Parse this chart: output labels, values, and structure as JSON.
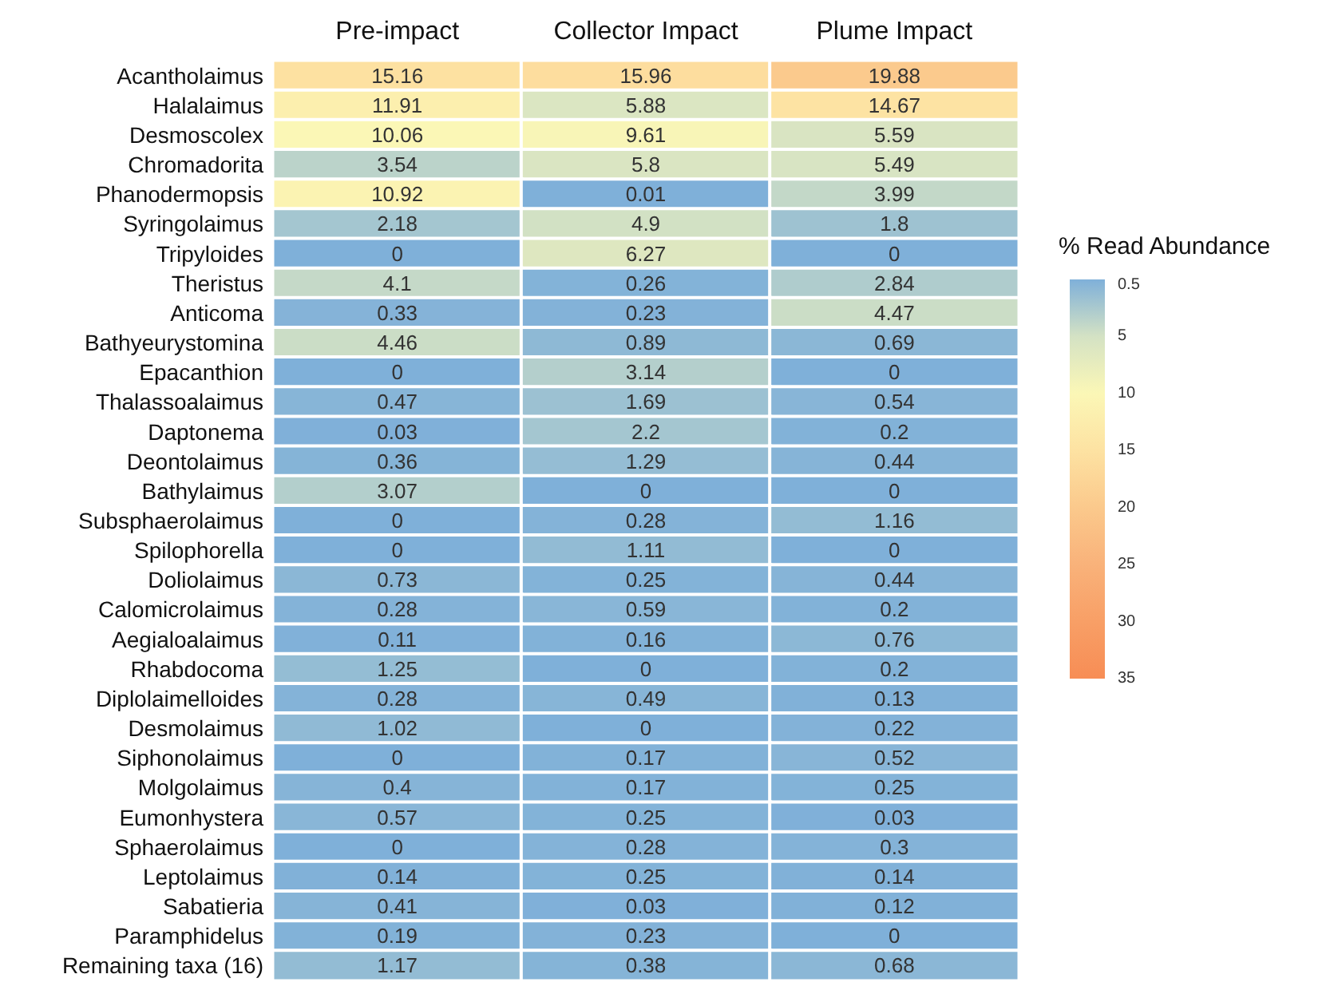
{
  "chart_data": {
    "type": "heatmap",
    "categories": [
      "Pre-impact",
      "Collector Impact",
      "Plume Impact"
    ],
    "y_categories": [
      "Acantholaimus",
      "Halalaimus",
      "Desmoscolex",
      "Chromadorita",
      "Phanodermopsis",
      "Syringolaimus",
      "Tripyloides",
      "Theristus",
      "Anticoma",
      "Bathyeurystomina",
      "Epacanthion",
      "Thalassoalaimus",
      "Daptonema",
      "Deontolaimus",
      "Bathylaimus",
      "Subsphaerolaimus",
      "Spilophorella",
      "Doliolaimus",
      "Calomicrolaimus",
      "Aegialoalaimus",
      "Rhabdocoma",
      "Diplolaimelloides",
      "Desmolaimus",
      "Siphonolaimus",
      "Molgolaimus",
      "Eumonhystera",
      "Sphaerolaimus",
      "Leptolaimus",
      "Sabatieria",
      "Paramphidelus",
      "Remaining taxa (16)"
    ],
    "cells": [
      [
        15.16,
        15.96,
        19.88
      ],
      [
        11.91,
        5.88,
        14.67
      ],
      [
        10.06,
        9.61,
        5.59
      ],
      [
        3.54,
        5.8,
        5.49
      ],
      [
        10.92,
        0.01,
        3.99
      ],
      [
        2.18,
        4.9,
        1.8
      ],
      [
        0,
        6.27,
        0
      ],
      [
        4.1,
        0.26,
        2.84
      ],
      [
        0.33,
        0.23,
        4.47
      ],
      [
        4.46,
        0.89,
        0.69
      ],
      [
        0,
        3.14,
        0
      ],
      [
        0.47,
        1.69,
        0.54
      ],
      [
        0.03,
        2.2,
        0.2
      ],
      [
        0.36,
        1.29,
        0.44
      ],
      [
        3.07,
        0,
        0
      ],
      [
        0,
        0.28,
        1.16
      ],
      [
        0,
        1.11,
        0
      ],
      [
        0.73,
        0.25,
        0.44
      ],
      [
        0.28,
        0.59,
        0.2
      ],
      [
        0.11,
        0.16,
        0.76
      ],
      [
        1.25,
        0,
        0.2
      ],
      [
        0.28,
        0.49,
        0.13
      ],
      [
        1.02,
        0,
        0.22
      ],
      [
        0,
        0.17,
        0.52
      ],
      [
        0.4,
        0.17,
        0.25
      ],
      [
        0.57,
        0.25,
        0.03
      ],
      [
        0,
        0.28,
        0.3
      ],
      [
        0.14,
        0.25,
        0.14
      ],
      [
        0.41,
        0.03,
        0.12
      ],
      [
        0.19,
        0.23,
        0
      ],
      [
        1.17,
        0.38,
        0.68
      ]
    ],
    "data_labels": true,
    "clabel": "% Read Abundance",
    "clim": [
      0,
      35
    ],
    "cticks": [
      0.5,
      5,
      10,
      15,
      20,
      25,
      30,
      35
    ]
  }
}
